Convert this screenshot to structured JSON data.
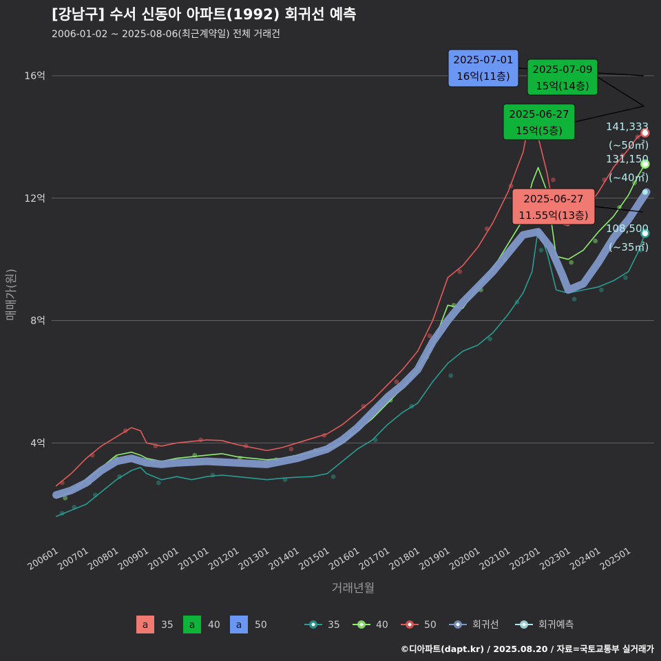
{
  "chart_data": {
    "type": "line",
    "title": "[강남구] 수서 신동아 아파트(1992) 회귀선 예측",
    "subtitle": "2006-01-02 ~ 2025-08-06(최근계약일) 전체 거래건",
    "xlabel": "거래년월",
    "ylabel": "매매가(원)",
    "x_ticks": [
      "200601",
      "200701",
      "200801",
      "200901",
      "201001",
      "201101",
      "201201",
      "201301",
      "201401",
      "201501",
      "201601",
      "201701",
      "201801",
      "201901",
      "202001",
      "202101",
      "202201",
      "202301",
      "202401",
      "202501"
    ],
    "y_ticks": [
      {
        "value": 40000,
        "label": "4억"
      },
      {
        "value": 80000,
        "label": "8억"
      },
      {
        "value": 120000,
        "label": "12억"
      },
      {
        "value": 160000,
        "label": "16억"
      }
    ],
    "ylim": [
      7000,
      169000
    ],
    "xlim": [
      2005.85,
      2025.85
    ],
    "grid": true,
    "caption": "©디아파트(dapt.kr) / 2025.08.20 / 자료=국토교통부 실거래가",
    "series": [
      {
        "name": "35",
        "color": "#2a9d94",
        "x": [
          2006.0,
          2006.5,
          2007.0,
          2007.5,
          2008.0,
          2008.5,
          2008.8,
          2009.0,
          2009.5,
          2010.0,
          2010.5,
          2011.0,
          2011.5,
          2012.0,
          2012.5,
          2013.0,
          2013.5,
          2014.0,
          2014.5,
          2015.0,
          2015.5,
          2016.0,
          2016.5,
          2017.0,
          2017.5,
          2018.0,
          2018.5,
          2019.0,
          2019.5,
          2020.0,
          2020.5,
          2021.0,
          2021.5,
          2021.8,
          2022.0,
          2022.3,
          2022.6,
          2023.0,
          2023.5,
          2024.0,
          2024.5,
          2025.0,
          2025.3,
          2025.55
        ],
        "values": [
          16000,
          18000,
          20000,
          24000,
          28000,
          31000,
          32000,
          30000,
          28000,
          29000,
          28000,
          29000,
          29500,
          29000,
          28500,
          28000,
          28500,
          28800,
          29000,
          30000,
          34000,
          38000,
          41000,
          46000,
          50000,
          53000,
          60000,
          66000,
          70000,
          72000,
          76000,
          82000,
          89000,
          96000,
          110000,
          102000,
          90000,
          89000,
          90000,
          91000,
          93000,
          96000,
          102000,
          108500
        ]
      },
      {
        "name": "40",
        "color": "#90ee70",
        "x": [
          2006.0,
          2006.5,
          2007.0,
          2007.5,
          2008.0,
          2008.5,
          2008.8,
          2009.0,
          2009.5,
          2010.0,
          2010.5,
          2011.0,
          2011.5,
          2012.0,
          2012.5,
          2013.0,
          2013.5,
          2014.0,
          2014.5,
          2015.0,
          2015.5,
          2016.0,
          2016.5,
          2017.0,
          2017.5,
          2018.0,
          2018.5,
          2019.0,
          2019.5,
          2020.0,
          2020.5,
          2021.0,
          2021.5,
          2021.8,
          2022.0,
          2022.3,
          2022.6,
          2023.0,
          2023.5,
          2024.0,
          2024.5,
          2025.0,
          2025.3,
          2025.55
        ],
        "values": [
          22000,
          24000,
          28000,
          32000,
          36000,
          37000,
          36000,
          35000,
          34000,
          35000,
          35500,
          36000,
          36500,
          35500,
          35000,
          34500,
          35000,
          36000,
          37000,
          38000,
          40000,
          44000,
          48000,
          53000,
          58000,
          64000,
          72000,
          85000,
          84000,
          91000,
          97000,
          105000,
          113000,
          125000,
          130000,
          122000,
          101000,
          100000,
          103000,
          109000,
          114000,
          121000,
          127000,
          131150
        ]
      },
      {
        "name": "50",
        "color": "#e45b5b",
        "x": [
          2006.0,
          2006.5,
          2007.0,
          2007.5,
          2008.0,
          2008.5,
          2008.8,
          2009.0,
          2009.5,
          2010.0,
          2010.5,
          2011.0,
          2011.5,
          2012.0,
          2012.5,
          2013.0,
          2013.5,
          2014.0,
          2014.5,
          2015.0,
          2015.5,
          2016.0,
          2016.5,
          2017.0,
          2017.5,
          2018.0,
          2018.5,
          2019.0,
          2019.5,
          2020.0,
          2020.5,
          2021.0,
          2021.5,
          2021.8,
          2022.0,
          2022.3,
          2022.6,
          2023.0,
          2023.5,
          2024.0,
          2024.5,
          2025.0,
          2025.3,
          2025.55
        ],
        "values": [
          26000,
          30000,
          35000,
          39000,
          42000,
          45000,
          44000,
          40000,
          39000,
          40000,
          40500,
          41000,
          40800,
          39500,
          38500,
          37500,
          38500,
          40000,
          41500,
          43000,
          46000,
          50000,
          54000,
          59000,
          64000,
          70000,
          80000,
          94000,
          98000,
          104000,
          112000,
          122000,
          135000,
          150000,
          140000,
          128000,
          112000,
          111000,
          115000,
          122000,
          130000,
          136000,
          140000,
          141333
        ]
      },
      {
        "name": "회귀선",
        "color": "#7f98c8",
        "x": [
          2006.0,
          2006.5,
          2007.0,
          2007.5,
          2008.0,
          2008.5,
          2009.0,
          2009.5,
          2010.0,
          2011.0,
          2012.0,
          2013.0,
          2014.0,
          2015.0,
          2015.5,
          2016.0,
          2016.5,
          2017.0,
          2017.5,
          2018.0,
          2018.5,
          2019.0,
          2019.5,
          2020.0,
          2020.5,
          2021.0,
          2021.5,
          2022.0,
          2022.4,
          2022.8,
          2023.0,
          2023.5,
          2024.0,
          2024.5,
          2025.0,
          2025.4,
          2025.6
        ],
        "values": [
          23000,
          24500,
          27000,
          31000,
          34000,
          35000,
          33500,
          33000,
          33500,
          34000,
          33500,
          33000,
          35000,
          38000,
          41000,
          45000,
          50000,
          55000,
          59000,
          64000,
          73000,
          80000,
          86000,
          91000,
          96000,
          102000,
          108000,
          109000,
          104000,
          95000,
          90000,
          92000,
          99000,
          107000,
          113000,
          119000,
          122000
        ]
      },
      {
        "name": "회귀예측",
        "color": "#aee8ee",
        "x": [
          2025.55
        ],
        "values": [
          122000
        ]
      }
    ],
    "scatter_points": [
      {
        "series": "35",
        "x": [
          2006.2,
          2006.6,
          2007.3,
          2008.1,
          2009.4,
          2011.2,
          2013.6,
          2015.2,
          2016.6,
          2017.8,
          2019.1,
          2020.4,
          2021.3,
          2022.1,
          2023.2,
          2024.1,
          2024.9,
          2025.4
        ],
        "values": [
          17000,
          19000,
          23000,
          29000,
          27000,
          29500,
          28000,
          29000,
          41000,
          52000,
          62000,
          74000,
          86000,
          103000,
          87000,
          90000,
          94000,
          103000
        ]
      },
      {
        "name_ref": "40",
        "series": "40",
        "x": [
          2006.3,
          2007.1,
          2008.0,
          2009.2,
          2010.6,
          2012.1,
          2013.3,
          2014.6,
          2015.8,
          2017.1,
          2018.3,
          2019.2,
          2020.1,
          2020.9,
          2021.6,
          2022.4,
          2023.1,
          2023.9,
          2024.7,
          2025.2
        ],
        "values": [
          22000,
          27000,
          35000,
          34000,
          36000,
          35000,
          34500,
          37500,
          43000,
          54000,
          68000,
          85000,
          90000,
          100000,
          112000,
          120000,
          99000,
          106000,
          117000,
          125000
        ]
      },
      {
        "series": "50",
        "x": [
          2006.2,
          2007.2,
          2008.3,
          2009.3,
          2010.8,
          2012.3,
          2013.8,
          2014.9,
          2016.2,
          2017.3,
          2018.4,
          2019.4,
          2020.3,
          2021.1,
          2021.9,
          2022.5,
          2023.3,
          2024.2,
          2024.8,
          2025.3
        ],
        "values": [
          27000,
          36000,
          44000,
          39000,
          41000,
          39000,
          38000,
          42500,
          52000,
          60000,
          75000,
          96000,
          110000,
          124000,
          145000,
          126000,
          112000,
          126000,
          134000,
          140000
        ]
      }
    ],
    "annotations": [
      {
        "date": "2025-07-01",
        "text": "16억(11층)",
        "series": "50",
        "x": 2025.5,
        "value": 160000
      },
      {
        "date": "2025-07-09",
        "text": "15억(14층)",
        "series": "40",
        "x": 2025.52,
        "value": 150000
      },
      {
        "date": "2025-06-27",
        "text": "15억(5층)",
        "series": "40",
        "x": 2025.48,
        "value": 150000
      },
      {
        "date": "2025-06-27",
        "text": "11.55억(13층)",
        "series": "35",
        "x": 2025.48,
        "value": 115500
      }
    ],
    "end_labels": [
      {
        "value": 141333,
        "text": "141,333",
        "area": "(~50㎡)"
      },
      {
        "value": 131150,
        "text": "131,150",
        "area": "(~40㎡)"
      },
      {
        "value": 108500,
        "text": "108,500",
        "area": "(~35㎡)"
      }
    ],
    "legend": {
      "placement": "bottom",
      "label_swatch": "a",
      "label_items": [
        {
          "name": "35",
          "color": "#f07a72"
        },
        {
          "name": "40",
          "color": "#0fb33a"
        },
        {
          "name": "50",
          "color": "#6a97f4"
        }
      ],
      "line_items": [
        {
          "name": "35",
          "color": "#2a9d94"
        },
        {
          "name": "40",
          "color": "#90ee70"
        },
        {
          "name": "50",
          "color": "#e45b5b"
        },
        {
          "name": "회귀선",
          "color": "#7f98c8"
        },
        {
          "name": "회귀예측",
          "color": "#aee8ee"
        }
      ]
    }
  }
}
